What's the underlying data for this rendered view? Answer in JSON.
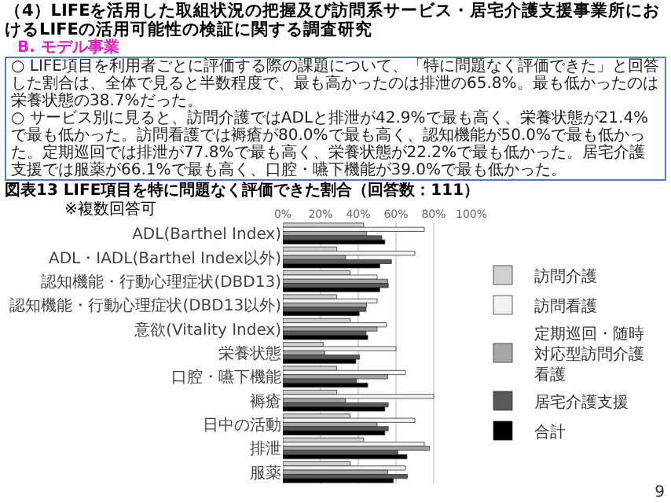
{
  "chart_data": {
    "type": "bar",
    "orientation": "horizontal",
    "title": "（4）LIFEを活用した取組状況の把握及び訪問系サービス・居宅介護支援事業所におけるLIFEの活用可能性の検証に関する調査研究",
    "subtitle": "B. モデル事業",
    "annotations": [
      "○ LIFE項目を利用者ごとに評価する際の課題について、「特に問題なく評価できた」と回答した割合は、全体で見ると半数程度で、最も高かったのは排泄の65.8%。最も低かったのは栄養状態の38.7%だった。",
      "○ サービス別に見ると、訪問介護ではADLと排泄が42.9%で最も高く、栄養状態が21.4%で最も低かった。訪問看護では褥瘡が80.0%で最も高く、認知機能が50.0%で最も低かった。定期巡回では排泄が77.8%で最も高く、栄養状態が22.2%で最も低かった。居宅介護支援では服薬が66.1%で最も高く、口腔・嚥下機能が39.0%で最も低かった。",
      "図表13 LIFE項目を特に問題なく評価できた割合（回答数：111）",
      "※複数回答可",
      "9"
    ],
    "categories": [
      "ADL(Barthel Index)",
      "ADL・IADL(Barthel Index以外)",
      "認知機能・行動心理症状(DBD13)",
      "認知機能・行動心理症状(DBD13以外)",
      "意欲(Vitality Index)",
      "栄養状態",
      "口腔・嚥下機能",
      "褥瘡",
      "日中の活動",
      "排泄",
      "服薬"
    ],
    "series": [
      {
        "name": "訪問介護",
        "color": "#d0d0d0",
        "values": [
          42.9,
          28.6,
          35.7,
          28.6,
          35.7,
          21.4,
          28.6,
          28.6,
          35.7,
          42.9,
          35.7
        ]
      },
      {
        "name": "訪問看護",
        "color": "#f2f2f2",
        "values": [
          75.0,
          70.0,
          50.0,
          50.0,
          55.0,
          60.0,
          65.0,
          80.0,
          70.0,
          75.0,
          65.0
        ]
      },
      {
        "name": "定期巡回・随時対応型訪問介護看護",
        "color": "#a6a6a6",
        "values": [
          44.4,
          33.3,
          55.6,
          44.4,
          50.0,
          22.2,
          55.6,
          33.3,
          50.0,
          77.8,
          55.6
        ]
      },
      {
        "name": "居宅介護支援",
        "color": "#595959",
        "values": [
          52.5,
          57.6,
          55.9,
          44.1,
          44.1,
          40.7,
          39.0,
          55.9,
          55.9,
          61.0,
          66.1
        ]
      },
      {
        "name": "合計",
        "color": "#000000",
        "values": [
          54.1,
          51.4,
          51.4,
          40.5,
          45.0,
          38.7,
          45.0,
          54.1,
          54.1,
          65.8,
          58.6
        ]
      }
    ],
    "xlim": [
      0,
      100
    ],
    "xticks": [
      {
        "value": 0,
        "label": "0%"
      },
      {
        "value": 20,
        "label": "20%"
      },
      {
        "value": 40,
        "label": "40%"
      },
      {
        "value": 60,
        "label": "60%"
      },
      {
        "value": 80,
        "label": "80%"
      },
      {
        "value": 100,
        "label": "100%"
      }
    ],
    "grid": "x",
    "legend": "right"
  }
}
